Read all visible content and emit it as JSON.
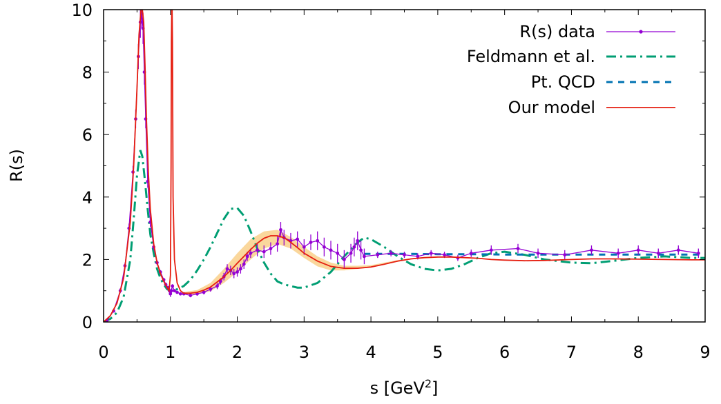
{
  "chart_data": {
    "type": "line",
    "xlabel": "s [GeV",
    "xlabel_sup": "2",
    "xlabel_suffix": "]",
    "ylabel": "R(s)",
    "xlim": [
      0,
      9
    ],
    "ylim": [
      0,
      10
    ],
    "xticks": [
      0,
      1,
      2,
      3,
      4,
      5,
      6,
      7,
      8,
      9
    ],
    "yticks": [
      0,
      2,
      4,
      6,
      8,
      10
    ],
    "grid": false,
    "legend_position": "top-right",
    "series": [
      {
        "name": "R(s) data",
        "style": "points-with-errorbars",
        "color": "#9400d3",
        "x": [
          0.05,
          0.15,
          0.25,
          0.32,
          0.38,
          0.44,
          0.48,
          0.52,
          0.55,
          0.57,
          0.59,
          0.61,
          0.63,
          0.66,
          0.7,
          0.75,
          0.8,
          0.85,
          0.9,
          0.93,
          0.96,
          0.985,
          1.0,
          1.015,
          1.03,
          1.06,
          1.1,
          1.15,
          1.2,
          1.3,
          1.4,
          1.5,
          1.6,
          1.7,
          1.75,
          1.8,
          1.85,
          1.9,
          1.95,
          2.0,
          2.05,
          2.1,
          2.15,
          2.2,
          2.3,
          2.4,
          2.5,
          2.6,
          2.65,
          2.7,
          2.8,
          2.9,
          3.0,
          3.1,
          3.2,
          3.3,
          3.4,
          3.5,
          3.6,
          3.7,
          3.75,
          3.8,
          3.85,
          3.9,
          4.1,
          4.3,
          4.5,
          4.7,
          4.9,
          5.1,
          5.3,
          5.5,
          5.8,
          6.2,
          6.5,
          6.9,
          7.3,
          7.7,
          8.0,
          8.3,
          8.6,
          8.9
        ],
        "y": [
          0.05,
          0.35,
          1.0,
          1.8,
          3.0,
          4.8,
          6.5,
          8.5,
          9.6,
          9.9,
          9.4,
          8.0,
          6.5,
          4.5,
          3.2,
          2.4,
          1.9,
          1.6,
          1.35,
          1.2,
          1.1,
          1.0,
          0.9,
          1.0,
          1.15,
          1.0,
          0.95,
          0.9,
          0.9,
          0.85,
          0.9,
          0.95,
          1.05,
          1.15,
          1.3,
          1.45,
          1.7,
          1.65,
          1.55,
          1.6,
          1.7,
          1.85,
          2.1,
          2.2,
          2.3,
          2.25,
          2.35,
          2.5,
          2.95,
          2.7,
          2.6,
          2.65,
          2.4,
          2.55,
          2.6,
          2.4,
          2.3,
          2.2,
          2.0,
          2.2,
          2.4,
          2.6,
          2.3,
          2.1,
          2.15,
          2.2,
          2.15,
          2.1,
          2.2,
          2.15,
          2.05,
          2.2,
          2.3,
          2.35,
          2.2,
          2.15,
          2.3,
          2.2,
          2.3,
          2.2,
          2.3,
          2.2
        ],
        "err": [
          0.02,
          0.05,
          0.08,
          0.1,
          0.15,
          0.2,
          0.3,
          0.4,
          0.5,
          0.5,
          0.5,
          0.4,
          0.3,
          0.2,
          0.15,
          0.1,
          0.08,
          0.06,
          0.06,
          0.06,
          0.06,
          0.08,
          0.1,
          0.08,
          0.06,
          0.05,
          0.05,
          0.05,
          0.05,
          0.06,
          0.06,
          0.07,
          0.08,
          0.1,
          0.1,
          0.12,
          0.15,
          0.15,
          0.15,
          0.15,
          0.15,
          0.15,
          0.15,
          0.15,
          0.2,
          0.2,
          0.2,
          0.25,
          0.25,
          0.25,
          0.25,
          0.25,
          0.25,
          0.25,
          0.3,
          0.3,
          0.3,
          0.3,
          0.3,
          0.3,
          0.3,
          0.3,
          0.3,
          0.25,
          0.1,
          0.1,
          0.1,
          0.1,
          0.1,
          0.1,
          0.1,
          0.12,
          0.15,
          0.15,
          0.15,
          0.15,
          0.15,
          0.15,
          0.15,
          0.15,
          0.15,
          0.15
        ]
      },
      {
        "name": "Feldmann et al.",
        "style": "dash-dot",
        "color": "#009e73",
        "x": [
          0,
          0.1,
          0.2,
          0.3,
          0.4,
          0.45,
          0.5,
          0.55,
          0.58,
          0.62,
          0.66,
          0.7,
          0.75,
          0.8,
          0.85,
          0.9,
          0.95,
          1.0,
          1.05,
          1.1,
          1.2,
          1.3,
          1.4,
          1.5,
          1.6,
          1.7,
          1.8,
          1.9,
          2.0,
          2.1,
          2.2,
          2.3,
          2.4,
          2.5,
          2.6,
          2.7,
          2.8,
          2.9,
          3.0,
          3.2,
          3.4,
          3.6,
          3.8,
          3.9,
          4.0,
          4.2,
          4.4,
          4.6,
          4.8,
          5.0,
          5.2,
          5.4,
          5.6,
          5.8,
          6.0,
          6.3,
          6.6,
          7.0,
          7.3,
          7.6,
          8.0,
          8.4,
          8.8,
          9.0
        ],
        "y": [
          0,
          0.1,
          0.3,
          0.8,
          2.0,
          3.3,
          4.7,
          5.5,
          5.3,
          4.5,
          3.6,
          2.8,
          2.2,
          1.7,
          1.4,
          1.2,
          1.05,
          1.0,
          1.0,
          1.05,
          1.15,
          1.35,
          1.65,
          2.0,
          2.4,
          2.85,
          3.3,
          3.62,
          3.65,
          3.4,
          2.9,
          2.35,
          1.9,
          1.55,
          1.3,
          1.2,
          1.15,
          1.1,
          1.1,
          1.25,
          1.6,
          2.1,
          2.55,
          2.7,
          2.65,
          2.4,
          2.1,
          1.85,
          1.7,
          1.65,
          1.7,
          1.85,
          2.05,
          2.2,
          2.25,
          2.15,
          2.0,
          1.9,
          1.88,
          1.95,
          2.05,
          2.1,
          2.05,
          2.05
        ]
      },
      {
        "name": "Pt. QCD",
        "style": "dashed",
        "color": "#0072b2",
        "x": [
          3.9,
          4.5,
          5.0,
          5.5,
          6.0,
          6.5,
          7.0,
          7.5,
          8.0,
          8.5,
          9.0
        ],
        "y": [
          2.18,
          2.18,
          2.17,
          2.17,
          2.16,
          2.16,
          2.16,
          2.16,
          2.16,
          2.16,
          2.16
        ]
      },
      {
        "name": "Our model",
        "style": "solid",
        "color": "#e51e10",
        "x": [
          0,
          0.1,
          0.2,
          0.3,
          0.4,
          0.45,
          0.5,
          0.53,
          0.56,
          0.58,
          0.6,
          0.62,
          0.64,
          0.67,
          0.7,
          0.75,
          0.8,
          0.85,
          0.9,
          0.95,
          0.98,
          1.0,
          1.01,
          1.015,
          1.02,
          1.025,
          1.03,
          1.04,
          1.06,
          1.1,
          1.15,
          1.2,
          1.3,
          1.4,
          1.5,
          1.6,
          1.7,
          1.8,
          1.9,
          2.0,
          2.1,
          2.2,
          2.3,
          2.4,
          2.5,
          2.6,
          2.7,
          2.8,
          2.9,
          3.0,
          3.2,
          3.4,
          3.6,
          3.8,
          4.0,
          4.2,
          4.4,
          4.6,
          4.8,
          5.0,
          5.2,
          5.4,
          5.6,
          5.8,
          6.0,
          6.3,
          6.6,
          7.0,
          7.3,
          7.6,
          8.0,
          8.4,
          8.8,
          9.0
        ],
        "y": [
          0,
          0.2,
          0.6,
          1.4,
          3.2,
          5.0,
          7.5,
          9.2,
          10.0,
          10.0,
          9.6,
          8.2,
          6.6,
          4.8,
          3.6,
          2.5,
          1.9,
          1.55,
          1.3,
          1.1,
          1.0,
          1.5,
          5.0,
          9.0,
          10.0,
          10.0,
          9.0,
          4.0,
          2.0,
          1.25,
          1.0,
          0.92,
          0.92,
          0.95,
          1.02,
          1.12,
          1.28,
          1.45,
          1.65,
          1.88,
          2.1,
          2.32,
          2.52,
          2.68,
          2.76,
          2.76,
          2.7,
          2.55,
          2.38,
          2.2,
          1.95,
          1.78,
          1.72,
          1.72,
          1.76,
          1.85,
          1.95,
          2.02,
          2.06,
          2.08,
          2.08,
          2.06,
          2.04,
          2.0,
          1.98,
          1.96,
          1.97,
          2.0,
          2.02,
          2.02,
          2.01,
          2.0,
          1.99,
          1.99
        ]
      }
    ],
    "uncertainty_band": {
      "color": "#f5a623",
      "x": [
        1.2,
        1.4,
        1.6,
        1.8,
        2.0,
        2.2,
        2.4,
        2.6,
        2.8,
        3.0,
        3.2,
        3.4,
        3.6,
        3.8,
        4.0,
        4.2,
        4.4,
        4.6,
        4.8,
        5.0
      ],
      "lower": [
        0.88,
        0.9,
        0.98,
        1.25,
        1.6,
        2.0,
        2.35,
        2.5,
        2.35,
        2.05,
        1.78,
        1.65,
        1.65,
        1.7,
        1.76,
        1.84,
        1.93,
        2.0,
        2.04,
        2.06
      ],
      "upper": [
        0.96,
        1.02,
        1.25,
        1.7,
        2.2,
        2.65,
        2.9,
        2.95,
        2.72,
        2.4,
        2.1,
        1.9,
        1.8,
        1.8,
        1.82,
        1.9,
        1.98,
        2.04,
        2.08,
        2.1
      ]
    }
  }
}
